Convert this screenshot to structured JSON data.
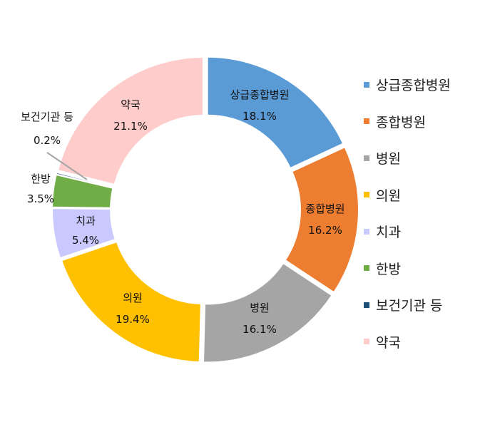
{
  "chart_data": {
    "type": "pie",
    "style": "donut",
    "legend_position": "right",
    "slices": [
      {
        "name": "상급종합병원",
        "label_lines": [
          "상급종합병원"
        ],
        "value": 18.1,
        "value_label": "18.1%",
        "color": "#5B9BD5"
      },
      {
        "name": "종합병원",
        "label_lines": [
          "종합병원"
        ],
        "value": 16.2,
        "value_label": "16.2%",
        "color": "#ED7D31"
      },
      {
        "name": "병원",
        "label_lines": [
          "병원"
        ],
        "value": 16.1,
        "value_label": "16.1%",
        "color": "#A5A5A5"
      },
      {
        "name": "의원",
        "label_lines": [
          "의원"
        ],
        "value": 19.4,
        "value_label": "19.4%",
        "color": "#FFC000"
      },
      {
        "name": "치과",
        "label_lines": [
          "치과"
        ],
        "value": 5.4,
        "value_label": "5.4%",
        "color": "#C9C9FF"
      },
      {
        "name": "한방",
        "label_lines": [
          "한방"
        ],
        "value": 3.5,
        "value_label": "3.5%",
        "color": "#70AD47"
      },
      {
        "name": "보건기관 등",
        "label_lines": [
          "보건기관 등"
        ],
        "value": 0.2,
        "value_label": "0.2%",
        "color": "#1F4E79"
      },
      {
        "name": "약국",
        "label_lines": [
          "약국"
        ],
        "value": 21.1,
        "value_label": "21.1%",
        "color": "#FFCCCC"
      }
    ]
  }
}
